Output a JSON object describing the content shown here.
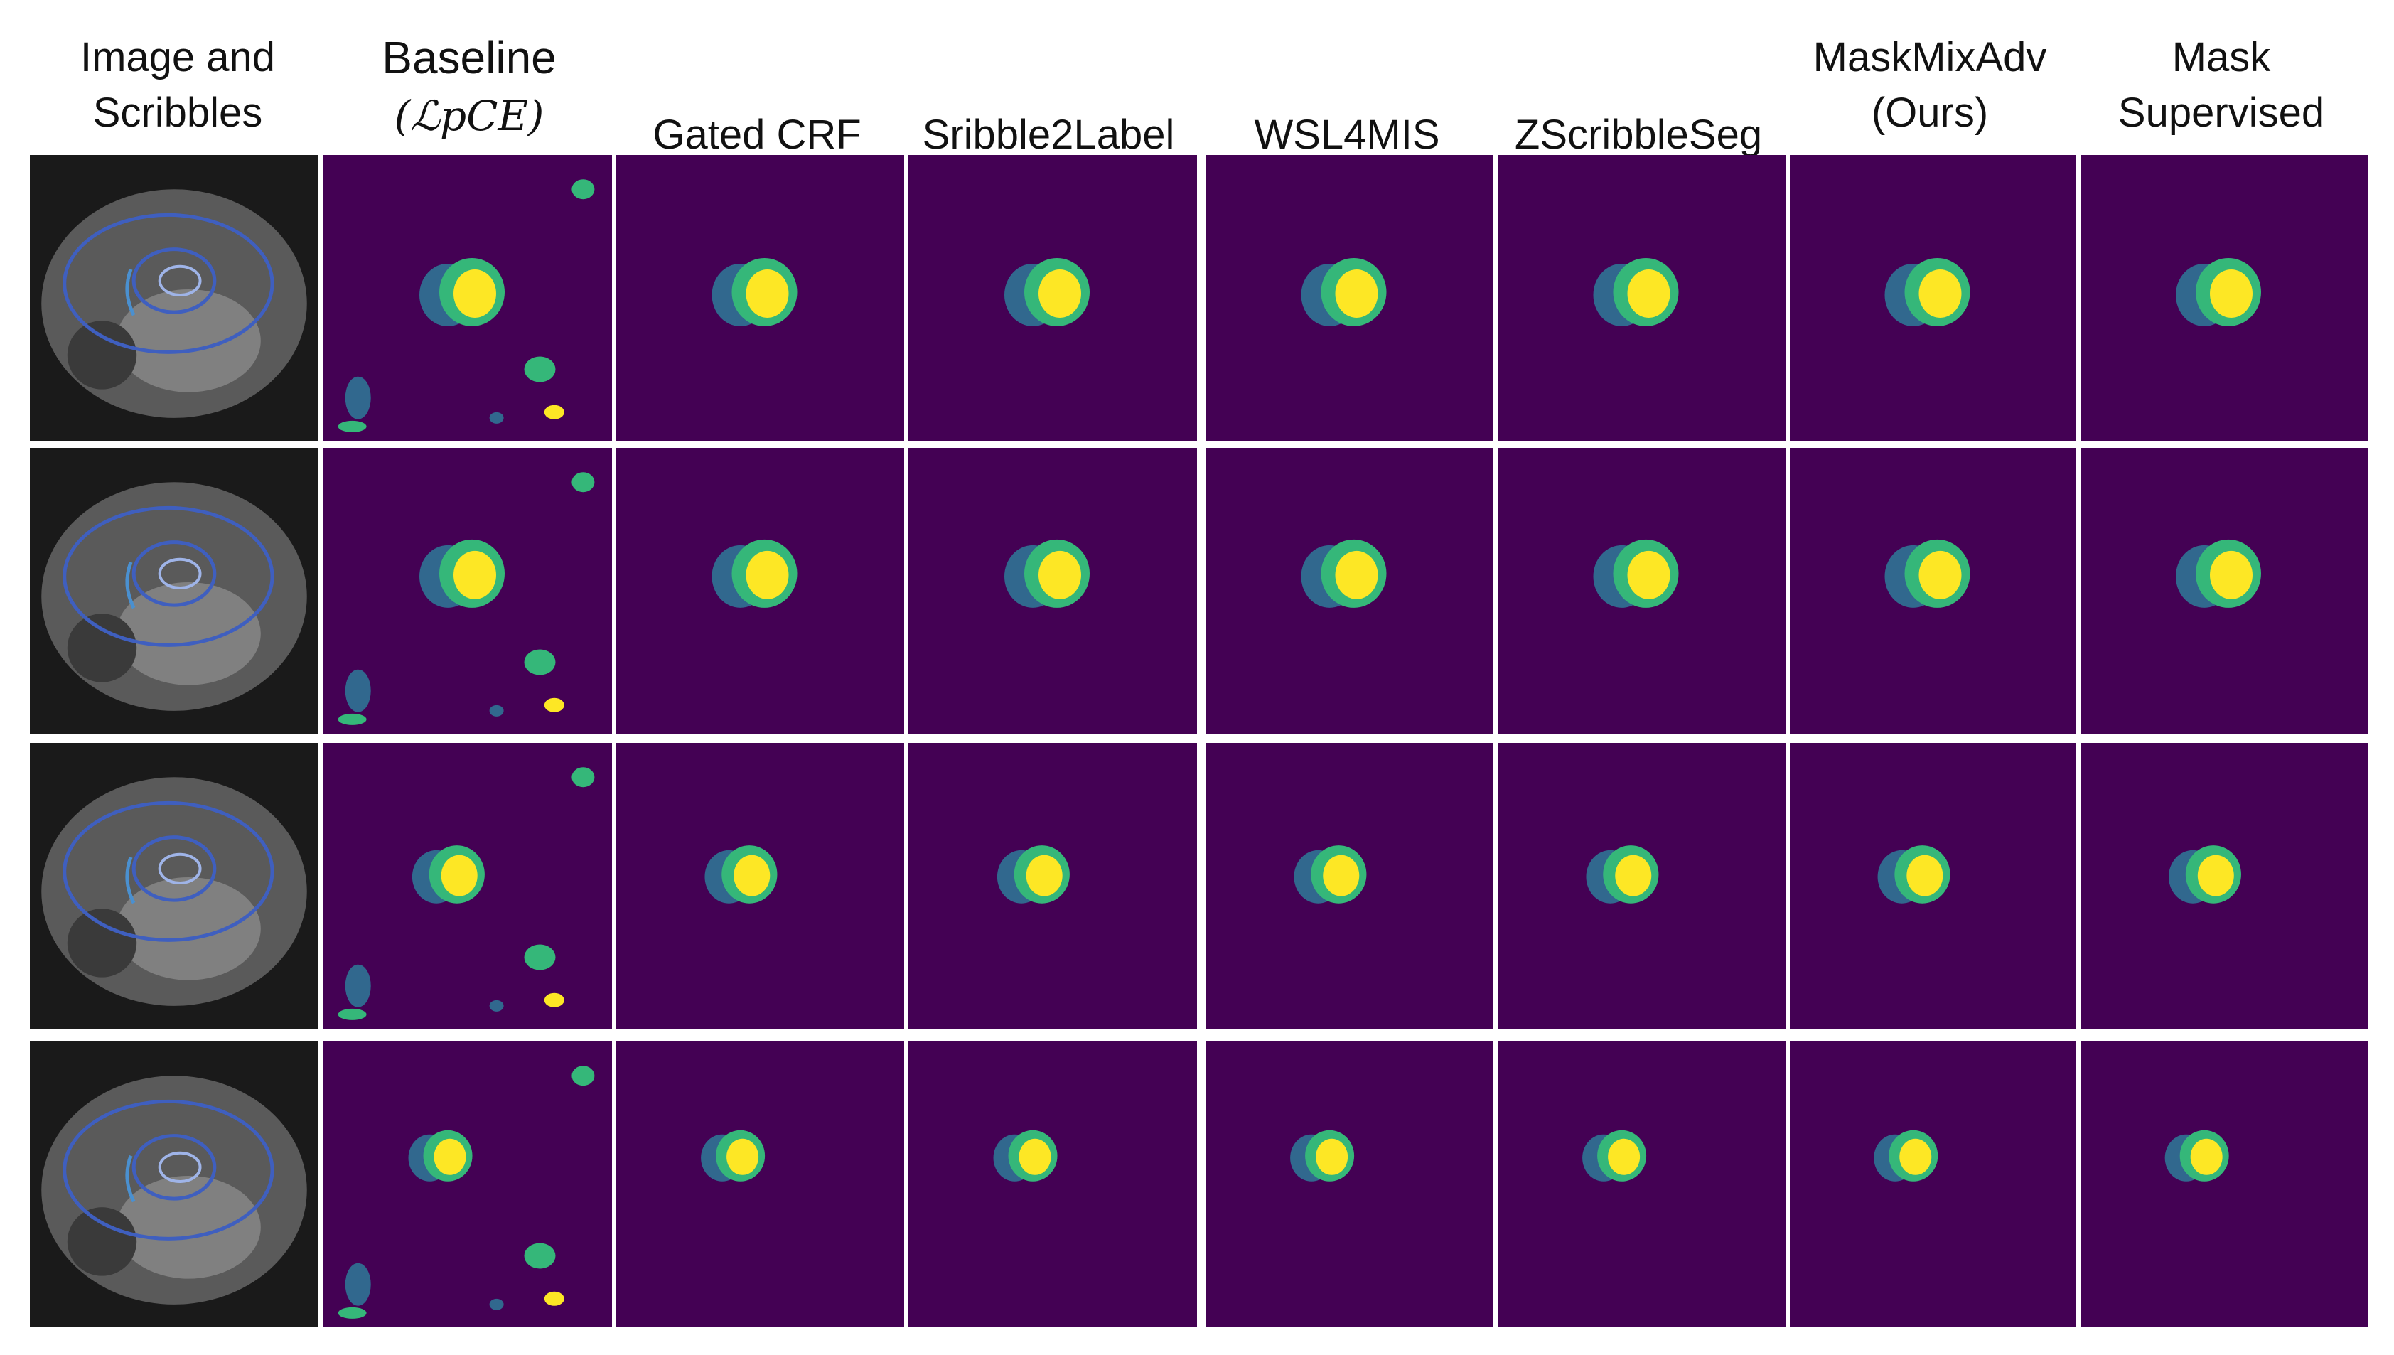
{
  "figure": {
    "columns": [
      {
        "lines": [
          "Image and",
          "Scribbles"
        ]
      },
      {
        "lines": [
          "Baseline",
          "(ℒpCE)"
        ]
      },
      {
        "lines": [
          "Gated CRF"
        ]
      },
      {
        "lines": [
          "Sribble2Label"
        ]
      },
      {
        "lines": [
          "WSL4MIS"
        ]
      },
      {
        "lines": [
          "ZScribbleSeg"
        ]
      },
      {
        "lines": [
          "MaskMixAdv",
          "(Ours)"
        ]
      },
      {
        "lines": [
          "Mask",
          "Supervised"
        ]
      }
    ],
    "rows": 4,
    "colors": {
      "background": "#440154",
      "rv": "#31688e",
      "myo": "#35b779",
      "lv": "#fde725",
      "mri_dark": "#1a1a1a",
      "scribble_blue": "#3f5fbf",
      "scribble_light": "#9fb4e8"
    }
  }
}
